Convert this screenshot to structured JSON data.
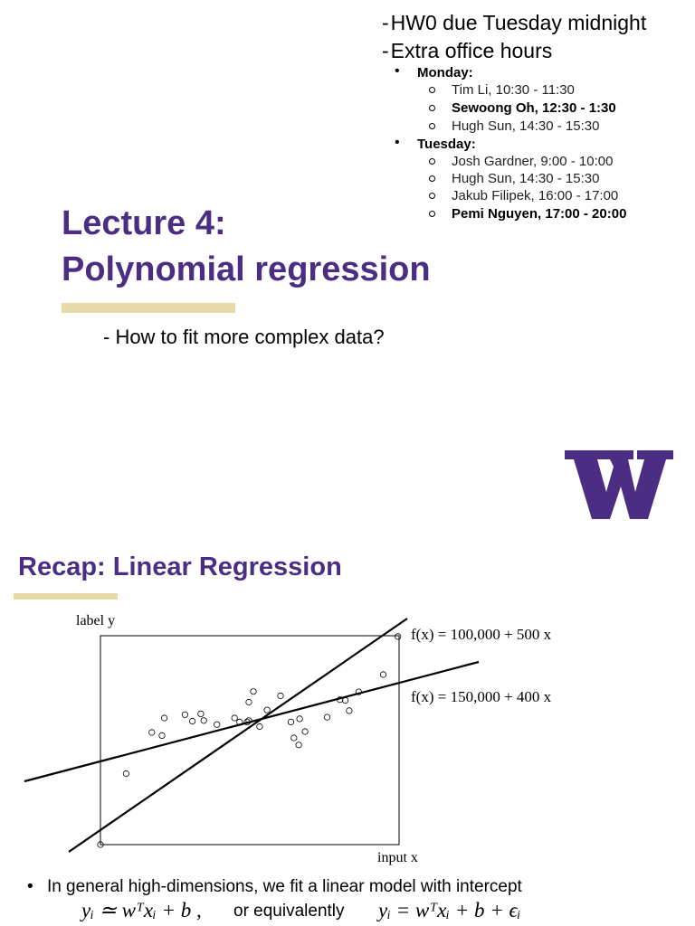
{
  "announcements": [
    {
      "dash": "-",
      "text": "HW0 due Tuesday midnight"
    },
    {
      "dash": "-",
      "text": "Extra office hours"
    }
  ],
  "office_hours": [
    {
      "day": "Monday:",
      "slots": [
        {
          "text": "Tim Li, 10:30 - 11:30",
          "bold": false
        },
        {
          "text": "Sewoong Oh, 12:30 - 1:30",
          "bold": true
        },
        {
          "text": "Hugh Sun, 14:30 - 15:30",
          "bold": false
        }
      ]
    },
    {
      "day": "Tuesday:",
      "slots": [
        {
          "text": "Josh Gardner, 9:00 - 10:00",
          "bold": false
        },
        {
          "text": "Hugh Sun, 14:30 - 15:30",
          "bold": false
        },
        {
          "text": "Jakub Filipek, 16:00 - 17:00",
          "bold": false
        },
        {
          "text": "Pemi Nguyen, 17:00 - 20:00",
          "bold": true
        }
      ]
    }
  ],
  "lecture": {
    "title_line1": "Lecture 4:",
    "title_line2": "Polynomial regression",
    "subtitle": "- How to fit more complex data?",
    "accent_color": "#4b2e83",
    "gold_color": "#e8d9a8"
  },
  "logo": {
    "letter": "W",
    "description": "university-w-logo"
  },
  "recap": {
    "title": "Recap: Linear Regression",
    "bullet": "In general high-dimensions, we fit a linear model with intercept",
    "eq_left": "yᵢ ≃ wᵀxᵢ + b ,",
    "eq_mid": "or equivalently",
    "eq_right": "yᵢ = wᵀxᵢ + b + ϵᵢ"
  },
  "chart_data": {
    "type": "scatter",
    "ylabel": "label y",
    "xlabel": "input x",
    "lines": [
      {
        "label": "f(x) = 100,000 + 500 x"
      },
      {
        "label": "f(x) = 150,000 + 400 x"
      }
    ],
    "note": "points sampled from figure (unitless)",
    "points": [
      [
        0.086,
        0.34
      ],
      [
        0.172,
        0.537
      ],
      [
        0.206,
        0.522
      ],
      [
        0.214,
        0.606
      ],
      [
        0.283,
        0.622
      ],
      [
        0.308,
        0.591
      ],
      [
        0.336,
        0.626
      ],
      [
        0.346,
        0.594
      ],
      [
        0.39,
        0.575
      ],
      [
        0.449,
        0.606
      ],
      [
        0.466,
        0.587
      ],
      [
        0.491,
        0.587
      ],
      [
        0.497,
        0.682
      ],
      [
        0.512,
        0.733
      ],
      [
        0.497,
        0.594
      ],
      [
        0.533,
        0.565
      ],
      [
        0.558,
        0.644
      ],
      [
        0.603,
        0.712
      ],
      [
        0.638,
        0.587
      ],
      [
        0.648,
        0.511
      ],
      [
        0.664,
        0.477
      ],
      [
        0.667,
        0.602
      ],
      [
        0.685,
        0.541
      ],
      [
        0.759,
        0.61
      ],
      [
        0.802,
        0.694
      ],
      [
        0.82,
        0.69
      ],
      [
        0.833,
        0.641
      ],
      [
        0.865,
        0.731
      ],
      [
        0.947,
        0.814
      ],
      [
        0.996,
        0.996
      ],
      [
        0.0,
        0.0
      ]
    ]
  }
}
